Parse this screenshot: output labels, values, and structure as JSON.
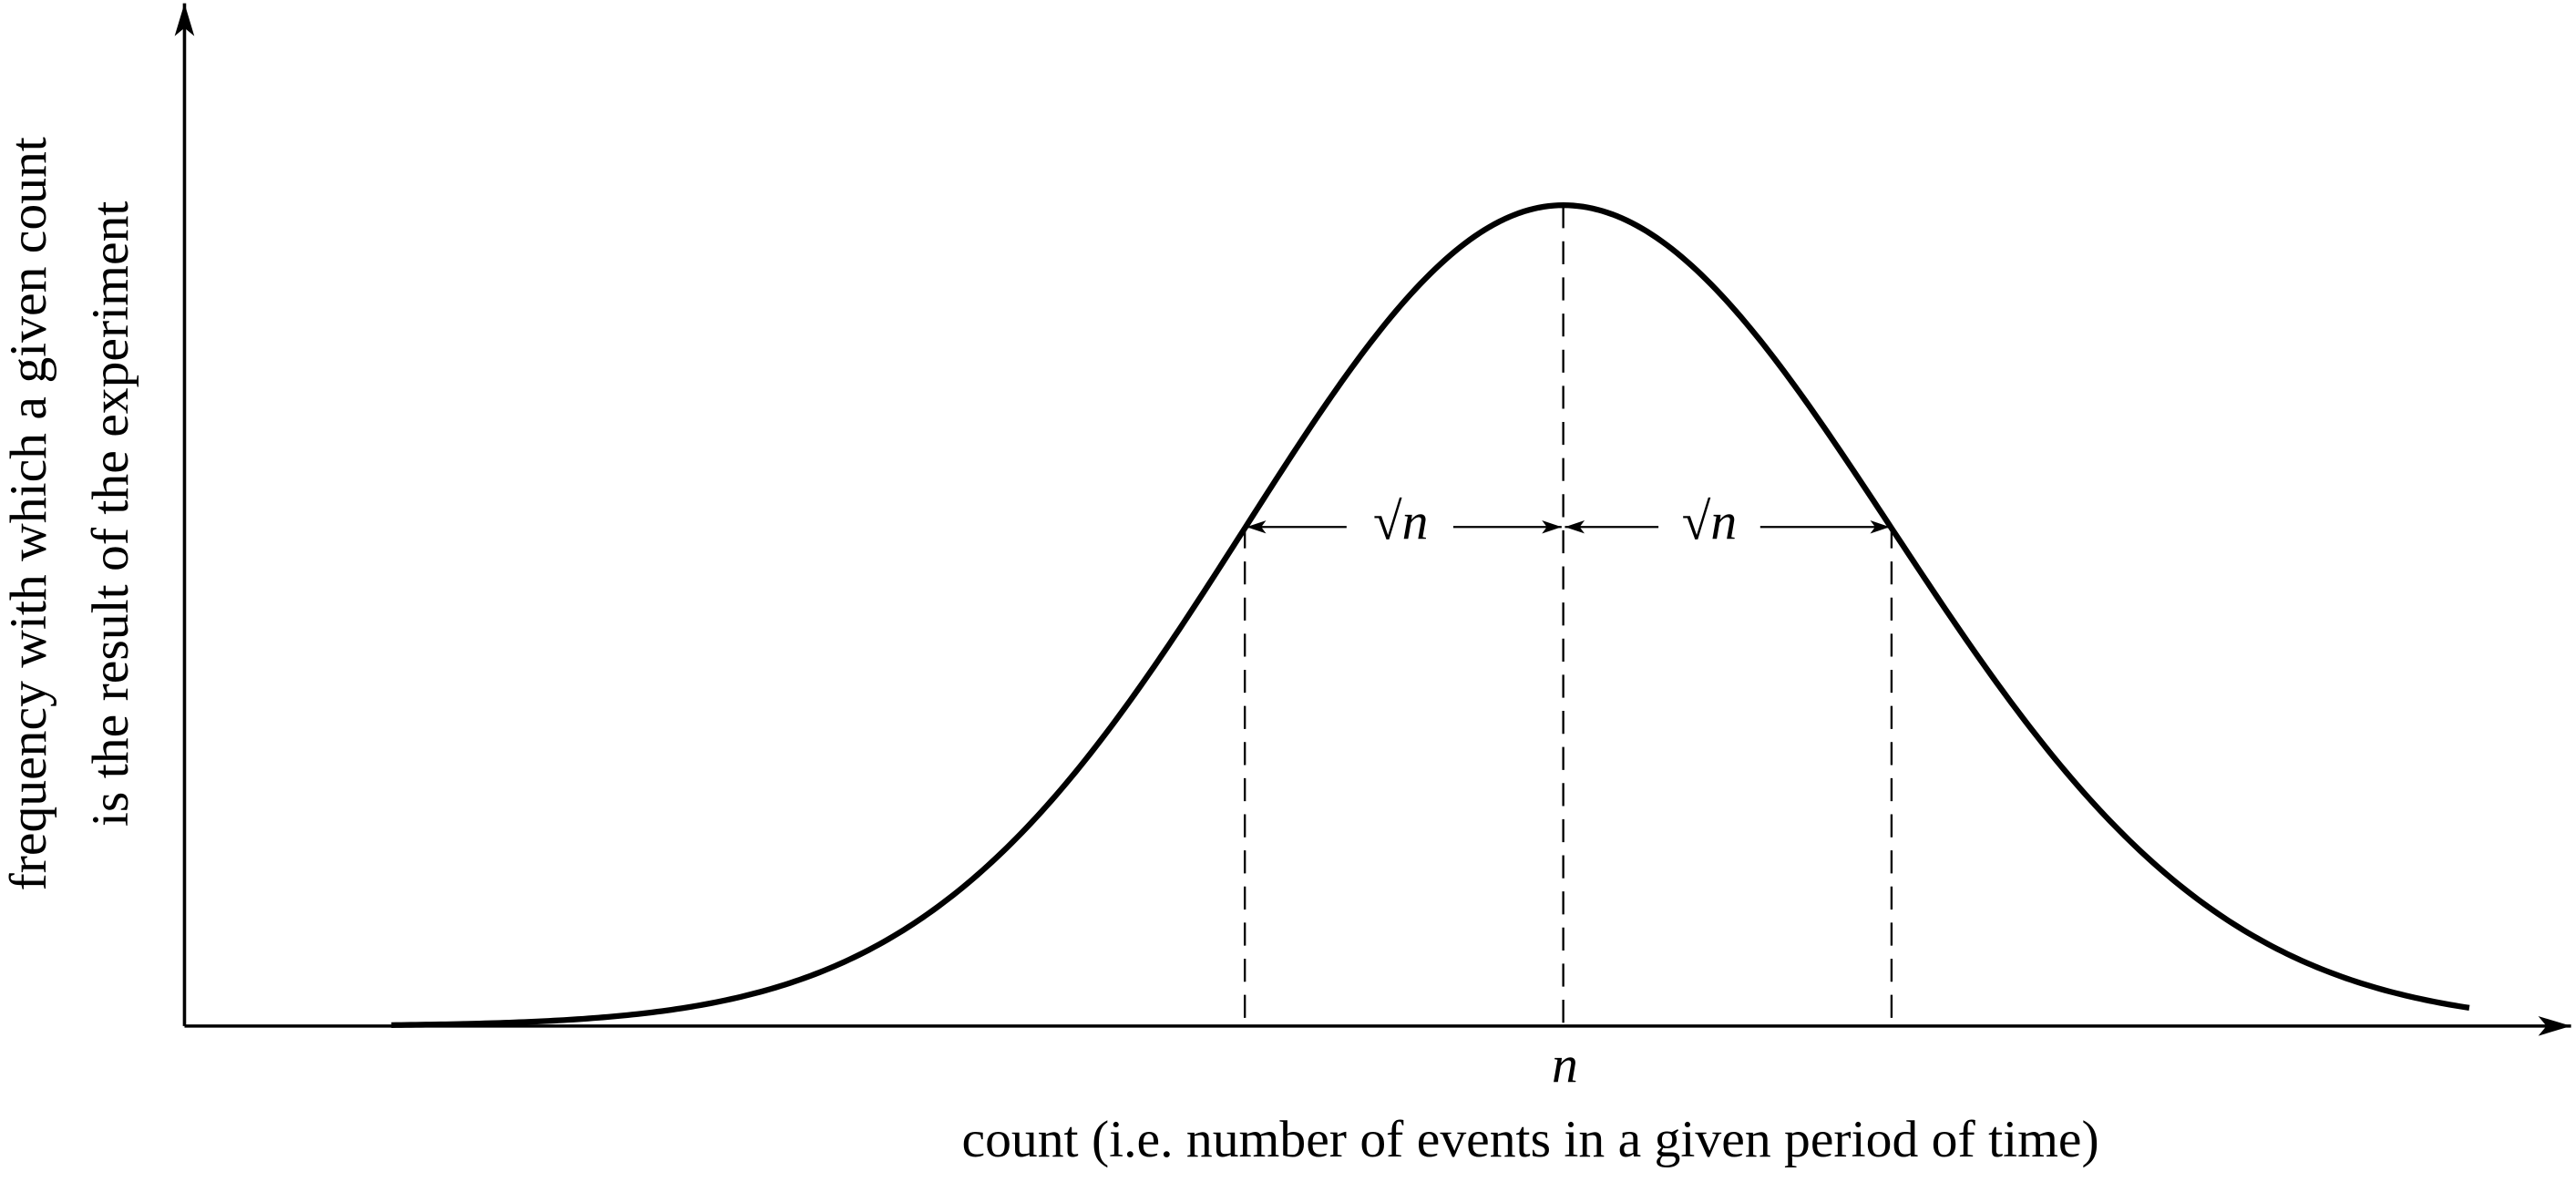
{
  "diagram": {
    "y_axis_label": [
      "frequency with which a given count",
      "is the result of the experiment"
    ],
    "x_axis_label": "count (i.e. number of events in a given period of time)",
    "mean_label": "n",
    "spread_labels": [
      "√n",
      "√n"
    ]
  }
}
